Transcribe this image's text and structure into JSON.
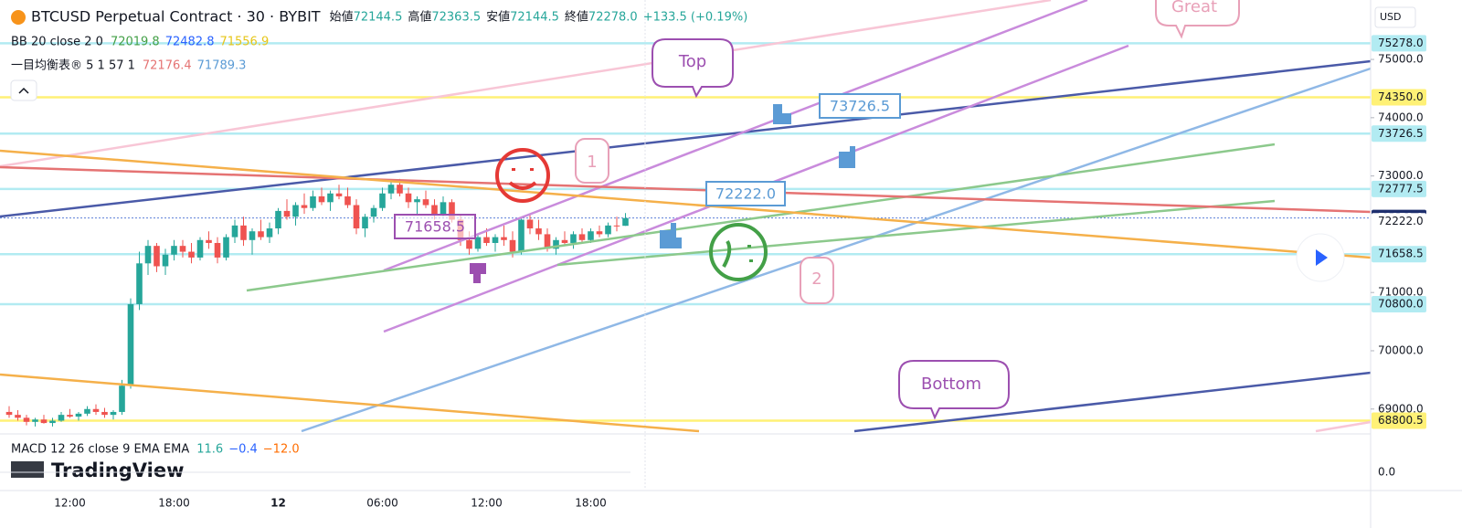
{
  "chart_data": {
    "type": "candlestick",
    "title": "BTCUSD Perpetual Contract · 30 · BYBIT",
    "ohlc_legend": [
      {
        "label": "始値",
        "value": "72144.5"
      },
      {
        "label": "高値",
        "value": "72363.5"
      },
      {
        "label": "安値",
        "value": "72144.5"
      },
      {
        "label": "終値",
        "value": "72278.0"
      }
    ],
    "change": "+133.5 (+0.19%)",
    "indicators": [
      {
        "name": "BB 20 close 2 0",
        "values": [
          "72019.8",
          "72482.8",
          "71556.9"
        ],
        "colors": [
          "#43a047",
          "#2962ff",
          "#e6c619"
        ]
      },
      {
        "name": "一目均衡表® 5 1 57 1",
        "values": [
          "72176.4",
          "71789.3"
        ],
        "colors": [
          "#e57373",
          "#5b9bd5"
        ]
      },
      {
        "name": "MACD 12 26 close 9 EMA EMA",
        "values": [
          "11.6",
          "−0.4",
          "−12.0"
        ],
        "colors": [
          "#26a69a",
          "#2962ff",
          "#ff6d00"
        ]
      }
    ],
    "currency": "USD",
    "watermark": "TradingView",
    "up_color": "#26a69a",
    "down_color": "#ef5350",
    "ylim": [
      68620,
      76020
    ],
    "yticks": [
      {
        "value": 69000,
        "label": "69000.0"
      },
      {
        "value": 70000,
        "label": "70000.0"
      },
      {
        "value": 71000,
        "label": "71000.0"
      },
      {
        "value": 73000,
        "label": "73000.0"
      },
      {
        "value": 74000,
        "label": "74000.0"
      },
      {
        "value": 75000,
        "label": "75000.0"
      }
    ],
    "price_lines": [
      {
        "value": 75278,
        "label": "75278.0",
        "color": "#b2ebf2"
      },
      {
        "value": 74350,
        "label": "74350.0",
        "color": "#fff176"
      },
      {
        "value": 73726.5,
        "label": "73726.5",
        "color": "#b2ebf2"
      },
      {
        "value": 72777.5,
        "label": "72777.5",
        "color": "#b2ebf2"
      },
      {
        "value": 72278,
        "label": "72278.0",
        "color": "#1e2f6e"
      },
      {
        "value": 72222,
        "label": "72222.0",
        "color": "#ffffff"
      },
      {
        "value": 71658.5,
        "label": "71658.5",
        "color": "#b2ebf2"
      },
      {
        "value": 70800,
        "label": "70800.0",
        "color": "#b2ebf2"
      },
      {
        "value": 68800.5,
        "label": "68800.5",
        "color": "#fff176"
      }
    ],
    "macd_ylim": [
      -40,
      40
    ],
    "macd_ticks": [
      {
        "value": 0,
        "label": "0.0"
      }
    ],
    "annotations": [
      "Top",
      "Great",
      "Bottom",
      "1",
      "2",
      "73726.5",
      "72222.0",
      "71658.5"
    ],
    "categories": [
      null,
      null,
      null,
      null,
      null,
      null,
      null,
      "12:00",
      null,
      null,
      null,
      null,
      null,
      null,
      null,
      null,
      null,
      null,
      null,
      "18:00",
      null,
      null,
      null,
      null,
      null,
      null,
      null,
      null,
      null,
      null,
      null,
      "12",
      null,
      null,
      null,
      null,
      null,
      null,
      null,
      null,
      null,
      null,
      null,
      "06:00",
      null,
      null,
      null,
      null,
      null,
      null,
      null,
      null,
      null,
      null,
      null,
      "12:00",
      null,
      null,
      null,
      null,
      null,
      null,
      null,
      null,
      null,
      null,
      null,
      "18:00",
      null,
      null,
      null,
      null
    ],
    "ohlc": [
      [
        68950,
        69050,
        68850,
        68900
      ],
      [
        68900,
        68980,
        68800,
        68850
      ],
      [
        68850,
        68900,
        68720,
        68780
      ],
      [
        68780,
        68850,
        68700,
        68820
      ],
      [
        68820,
        68900,
        68750,
        68760
      ],
      [
        68760,
        68850,
        68700,
        68800
      ],
      [
        68800,
        68950,
        68780,
        68900
      ],
      [
        68900,
        69000,
        68850,
        68870
      ],
      [
        68870,
        68950,
        68800,
        68920
      ],
      [
        68920,
        69050,
        68880,
        69000
      ],
      [
        69000,
        69080,
        68900,
        68950
      ],
      [
        68950,
        69020,
        68850,
        68900
      ],
      [
        68900,
        68980,
        68820,
        68950
      ],
      [
        68950,
        69500,
        68900,
        69400
      ],
      [
        69400,
        70900,
        69350,
        70800
      ],
      [
        70800,
        71700,
        70700,
        71500
      ],
      [
        71500,
        71900,
        71300,
        71800
      ],
      [
        71800,
        71850,
        71350,
        71450
      ],
      [
        71450,
        71750,
        71300,
        71650
      ],
      [
        71650,
        71900,
        71550,
        71800
      ],
      [
        71800,
        71900,
        71600,
        71700
      ],
      [
        71700,
        71850,
        71500,
        71600
      ],
      [
        71600,
        71950,
        71550,
        71900
      ],
      [
        71900,
        72050,
        71750,
        71850
      ],
      [
        71850,
        71950,
        71500,
        71600
      ],
      [
        71600,
        72000,
        71550,
        71950
      ],
      [
        71950,
        72250,
        71850,
        72150
      ],
      [
        72150,
        72300,
        71800,
        71900
      ],
      [
        71900,
        72100,
        71650,
        72050
      ],
      [
        72050,
        72250,
        71900,
        71950
      ],
      [
        71950,
        72200,
        71850,
        72100
      ],
      [
        72100,
        72450,
        72000,
        72400
      ],
      [
        72400,
        72600,
        72250,
        72300
      ],
      [
        72300,
        72550,
        72150,
        72500
      ],
      [
        72500,
        72700,
        72350,
        72450
      ],
      [
        72450,
        72750,
        72400,
        72650
      ],
      [
        72650,
        72800,
        72500,
        72550
      ],
      [
        72550,
        72750,
        72400,
        72700
      ],
      [
        72700,
        72850,
        72600,
        72650
      ],
      [
        72650,
        72800,
        72450,
        72500
      ],
      [
        72500,
        72600,
        72000,
        72100
      ],
      [
        72100,
        72350,
        71950,
        72300
      ],
      [
        72300,
        72500,
        72200,
        72450
      ],
      [
        72450,
        72800,
        72400,
        72700
      ],
      [
        72700,
        72900,
        72600,
        72850
      ],
      [
        72850,
        72950,
        72650,
        72700
      ],
      [
        72700,
        72800,
        72450,
        72550
      ],
      [
        72550,
        72650,
        72350,
        72600
      ],
      [
        72600,
        72750,
        72450,
        72500
      ],
      [
        72500,
        72600,
        72250,
        72350
      ],
      [
        72350,
        72650,
        72300,
        72550
      ],
      [
        72550,
        72600,
        72200,
        72250
      ],
      [
        72250,
        72350,
        71800,
        71900
      ],
      [
        71900,
        72050,
        71650,
        71750
      ],
      [
        71750,
        72000,
        71700,
        71950
      ],
      [
        71950,
        72100,
        71800,
        71850
      ],
      [
        71850,
        72000,
        71700,
        71950
      ],
      [
        71950,
        72150,
        71800,
        71900
      ],
      [
        71900,
        72050,
        71600,
        71700
      ],
      [
        71700,
        72300,
        71650,
        72250
      ],
      [
        72250,
        72350,
        72000,
        72100
      ],
      [
        72100,
        72250,
        71900,
        72000
      ],
      [
        72000,
        72100,
        71700,
        71750
      ],
      [
        71750,
        71950,
        71650,
        71900
      ],
      [
        71900,
        72050,
        71800,
        71850
      ],
      [
        71850,
        72050,
        71750,
        72000
      ],
      [
        72000,
        72100,
        71850,
        71900
      ],
      [
        71900,
        72100,
        71850,
        72050
      ],
      [
        72050,
        72150,
        71950,
        72000
      ],
      [
        72000,
        72200,
        71950,
        72150
      ],
      [
        72150,
        72300,
        72050,
        72144.5
      ],
      [
        72144.5,
        72363.5,
        72144.5,
        72278
      ]
    ]
  }
}
